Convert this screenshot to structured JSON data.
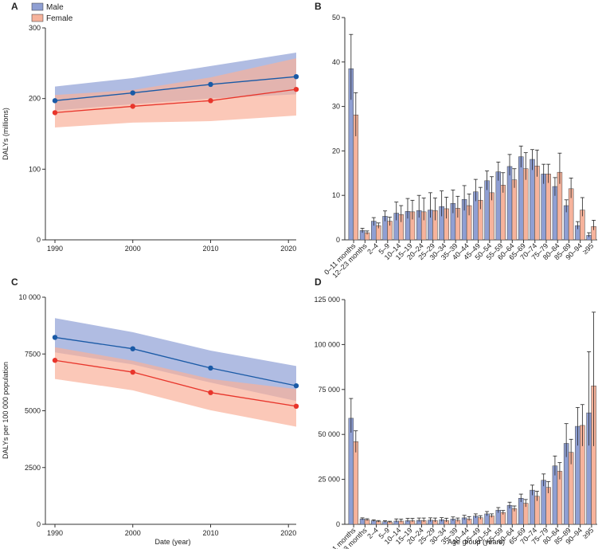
{
  "colors": {
    "male_fill": "#8f9fd3",
    "male_band": "#8fa0d5",
    "male_line": "#1a5aa6",
    "female_fill": "#f6b39c",
    "female_band": "#f9b09a",
    "female_line": "#e8352b",
    "axis": "#333333"
  },
  "legend": {
    "male": "Male",
    "female": "Female"
  },
  "x_title_time": "Date (year)",
  "x_title_age": "Age group (years)",
  "age_groups": [
    "0–11 months",
    "12–23 months",
    "2–4",
    "5–9",
    "10–14",
    "15–19",
    "20–24",
    "25–29",
    "30–34",
    "35–39",
    "40–44",
    "45–49",
    "50–54",
    "55–59",
    "60–64",
    "65–69",
    "70–74",
    "75–79",
    "80–84",
    "85–89",
    "90–94",
    "≥95"
  ],
  "chart_data": [
    {
      "panel": "A",
      "type": "line",
      "ylabel": "DALYs (millions)",
      "xlabel": "Date (year)",
      "ylim": [
        0,
        300
      ],
      "yticks": [
        0,
        100,
        200,
        300
      ],
      "xlim": [
        1990,
        2021
      ],
      "xticks": [
        1990,
        2000,
        2010,
        2020
      ],
      "x": [
        1990,
        2000,
        2010,
        2021
      ],
      "series": [
        {
          "name": "Male",
          "values": [
            197,
            208,
            220,
            231
          ],
          "lower": [
            183,
            192,
            200,
            206
          ],
          "upper": [
            217,
            229,
            246,
            265
          ]
        },
        {
          "name": "Female",
          "values": [
            180,
            189,
            197,
            213
          ],
          "lower": [
            159,
            166,
            168,
            176
          ],
          "upper": [
            205,
            212,
            230,
            257
          ]
        }
      ],
      "legend_position": "top-left"
    },
    {
      "panel": "B",
      "type": "bar",
      "ylabel": "",
      "xlabel": "Age group (years)",
      "ylim": [
        0,
        50
      ],
      "yticks": [
        0,
        10,
        20,
        30,
        40,
        50
      ],
      "series": [
        {
          "name": "Male",
          "values": [
            38.5,
            2.1,
            4.2,
            5.3,
            6.0,
            6.4,
            6.6,
            6.7,
            7.5,
            8.2,
            9.1,
            10.8,
            13.3,
            15.3,
            16.5,
            18.7,
            18.1,
            14.8,
            12.0,
            7.7,
            3.2,
            1.0
          ],
          "error_low": [
            31.5,
            1.6,
            3.2,
            4.2,
            4.4,
            4.8,
            5.0,
            5.0,
            5.3,
            6.0,
            6.6,
            8.7,
            11.2,
            13.3,
            14.5,
            16.3,
            15.7,
            12.6,
            9.9,
            6.2,
            2.4,
            0.6
          ],
          "error_high": [
            46.2,
            2.6,
            5.0,
            6.5,
            8.5,
            9.3,
            10.0,
            10.6,
            11.0,
            11.2,
            12.2,
            13.6,
            15.5,
            17.5,
            19.2,
            21.1,
            20.3,
            17.0,
            14.0,
            9.0,
            4.1,
            1.6
          ]
        },
        {
          "name": "Female",
          "values": [
            28.1,
            1.6,
            3.2,
            4.2,
            5.7,
            6.3,
            6.3,
            6.6,
            7.0,
            7.1,
            7.7,
            8.9,
            10.6,
            12.3,
            13.5,
            16.0,
            16.6,
            14.8,
            15.2,
            11.5,
            6.7,
            3.0
          ],
          "error_low": [
            23.3,
            1.2,
            2.6,
            3.2,
            4.0,
            4.6,
            4.4,
            4.4,
            4.8,
            5.0,
            5.5,
            6.9,
            8.9,
            10.6,
            11.7,
            13.5,
            14.2,
            12.8,
            12.6,
            9.4,
            5.3,
            2.2
          ],
          "error_high": [
            33.1,
            2.0,
            3.8,
            5.1,
            7.7,
            8.9,
            9.4,
            9.4,
            9.6,
            9.8,
            10.3,
            11.8,
            14.2,
            15.1,
            16.0,
            19.6,
            20.2,
            17.0,
            19.5,
            13.9,
            9.5,
            4.4
          ]
        }
      ]
    },
    {
      "panel": "C",
      "type": "line",
      "ylabel": "DALYs per 100 000 population",
      "xlabel": "Date (year)",
      "ylim": [
        0,
        10000
      ],
      "yticks": [
        0,
        2500,
        5000,
        7500,
        10000
      ],
      "ytick_labels": [
        "0",
        "2500",
        "5000",
        "7500",
        "10 000"
      ],
      "xlim": [
        1990,
        2021
      ],
      "xticks": [
        1990,
        2000,
        2010,
        2020
      ],
      "x": [
        1990,
        2000,
        2010,
        2021
      ],
      "series": [
        {
          "name": "Male",
          "values": [
            8230,
            7730,
            6880,
            6100
          ],
          "lower": [
            7570,
            7040,
            6240,
            5430
          ],
          "upper": [
            9080,
            8460,
            7650,
            6970
          ]
        },
        {
          "name": "Female",
          "values": [
            7220,
            6700,
            5800,
            5200
          ],
          "lower": [
            6400,
            5900,
            5020,
            4300
          ],
          "upper": [
            7800,
            7200,
            6400,
            5950
          ]
        }
      ]
    },
    {
      "panel": "D",
      "type": "bar",
      "ylabel": "",
      "xlabel": "Age group (years)",
      "ylim": [
        0,
        125000
      ],
      "yticks": [
        0,
        25000,
        50000,
        75000,
        100000,
        125000
      ],
      "ytick_labels": [
        "0",
        "25 000",
        "50 000",
        "75 000",
        "100 000",
        "125 000"
      ],
      "series": [
        {
          "name": "Male",
          "values": [
            59000,
            3000,
            2000,
            1500,
            1800,
            2000,
            2200,
            2300,
            2500,
            2900,
            3600,
            4600,
            5800,
            7900,
            10500,
            14500,
            19000,
            24500,
            32500,
            45000,
            54500,
            62000
          ],
          "error_low": [
            51000,
            2400,
            1600,
            1100,
            1200,
            1400,
            1500,
            1500,
            1600,
            1900,
            2500,
            3500,
            4700,
            6400,
            8800,
            12400,
            16200,
            21200,
            27200,
            37400,
            43800,
            43800
          ],
          "error_high": [
            70000,
            3600,
            2500,
            2000,
            3000,
            3300,
            3500,
            3600,
            3700,
            4100,
            5000,
            5800,
            7100,
            9300,
            12300,
            16800,
            21800,
            28000,
            38000,
            56000,
            65000,
            96000
          ]
        },
        {
          "name": "Female",
          "values": [
            46000,
            2500,
            1600,
            1300,
            1800,
            2000,
            2100,
            2100,
            2100,
            2300,
            2900,
            3700,
            4700,
            6600,
            8700,
            11700,
            15600,
            20500,
            29500,
            40000,
            55000,
            77000
          ],
          "error_low": [
            40000,
            2000,
            1200,
            1000,
            1200,
            1300,
            1300,
            1300,
            1300,
            1500,
            2000,
            2800,
            3800,
            5400,
            7200,
            9700,
            13000,
            17300,
            25000,
            33400,
            43500,
            43500
          ],
          "error_high": [
            52000,
            3100,
            2100,
            1700,
            2900,
            3300,
            3500,
            3500,
            3400,
            3500,
            4300,
            4800,
            5800,
            7700,
            10200,
            13800,
            18400,
            23800,
            34300,
            47300,
            66600,
            118000
          ]
        }
      ]
    }
  ]
}
